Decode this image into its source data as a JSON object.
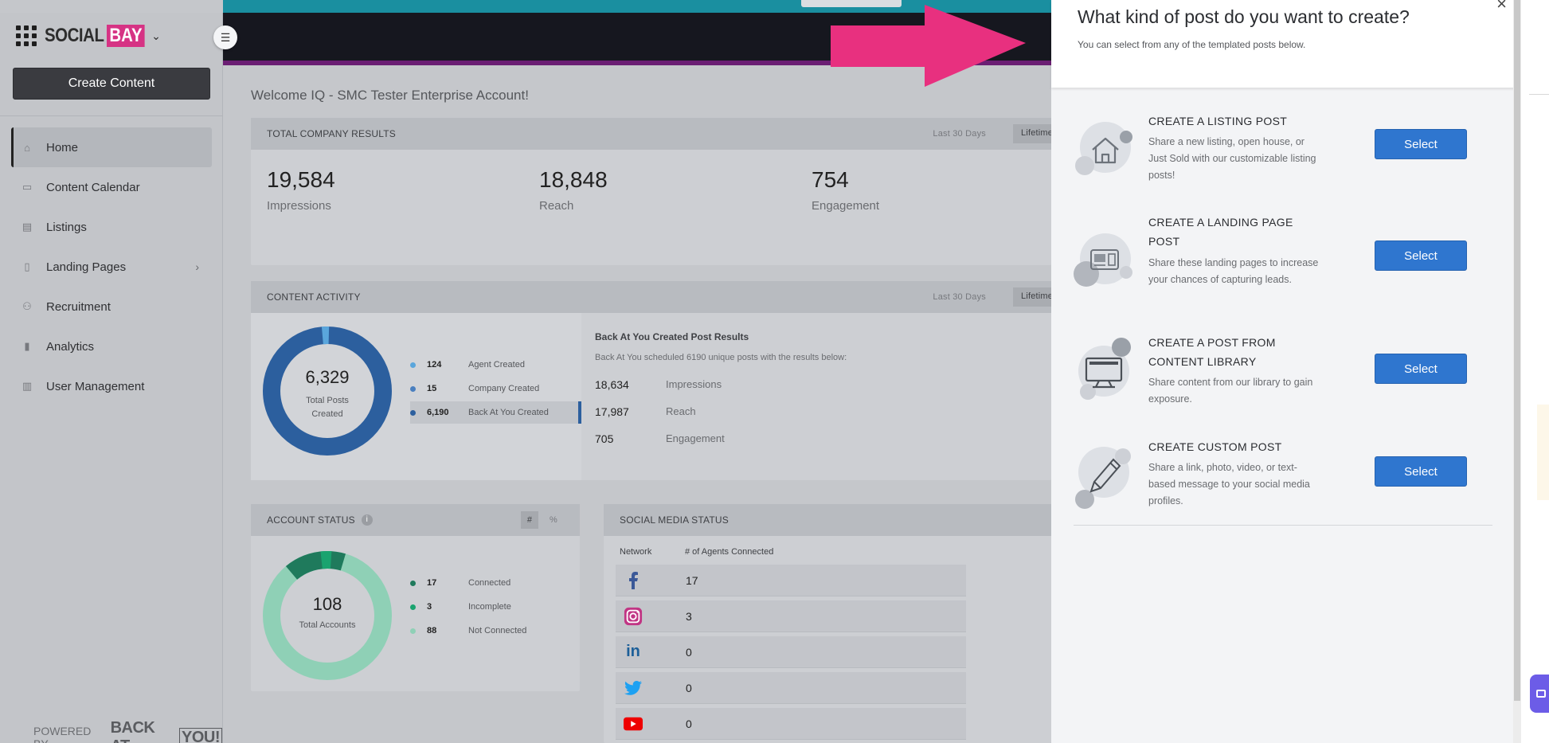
{
  "brand": {
    "social": "SOCIAL",
    "bay": "BAY",
    "chevron": "⌄"
  },
  "sidebar": {
    "create_label": "Create Content",
    "items": [
      {
        "label": "Home",
        "icon": "home-icon",
        "glyph": "⌂"
      },
      {
        "label": "Content Calendar",
        "icon": "calendar-icon",
        "glyph": "▭"
      },
      {
        "label": "Listings",
        "icon": "listings-icon",
        "glyph": "▤"
      },
      {
        "label": "Landing Pages",
        "icon": "landing-pages-icon",
        "glyph": "▯"
      },
      {
        "label": "Recruitment",
        "icon": "recruitment-icon",
        "glyph": "⚇"
      },
      {
        "label": "Analytics",
        "icon": "analytics-icon",
        "glyph": "▮"
      },
      {
        "label": "User Management",
        "icon": "user-management-icon",
        "glyph": "▥"
      }
    ],
    "expand_arrow": "›",
    "powered_by": "POWERED BY",
    "powered_brand": "BACK AT",
    "powered_brand_you": "YOU!"
  },
  "main": {
    "welcome": "Welcome IQ - SMC Tester Enterprise Account!",
    "total_results": {
      "title": "TOTAL COMPANY RESULTS",
      "period": "Last 30 Days",
      "lifetime": "Lifetime",
      "metrics": [
        {
          "value": "19,584",
          "label": "Impressions"
        },
        {
          "value": "18,848",
          "label": "Reach"
        },
        {
          "value": "754",
          "label": "Engagement"
        }
      ]
    },
    "content_activity": {
      "title": "CONTENT ACTIVITY",
      "period": "Last 30 Days",
      "lifetime": "Lifetime",
      "donut_total": "6,329",
      "donut_label": "Total Posts Created",
      "legend": [
        {
          "value": "124",
          "label": "Agent Created",
          "color": "#5aa6dc"
        },
        {
          "value": "15",
          "label": "Company Created",
          "color": "#4a7fbf"
        },
        {
          "value": "6,190",
          "label": "Back At You Created",
          "color": "#2c5f9e"
        }
      ],
      "bay_title": "Back At You Created Post Results",
      "bay_sub": "Back At You scheduled 6190 unique posts with the results below:",
      "bay_metrics": [
        {
          "value": "18,634",
          "label": "Impressions"
        },
        {
          "value": "17,987",
          "label": "Reach"
        },
        {
          "value": "705",
          "label": "Engagement"
        }
      ]
    },
    "account_status": {
      "title": "ACCOUNT STATUS",
      "hash": "#",
      "percent": "%",
      "donut_total": "108",
      "donut_label": "Total Accounts",
      "legend": [
        {
          "value": "17",
          "label": "Connected",
          "color": "#1f7a5c"
        },
        {
          "value": "3",
          "label": "Incomplete",
          "color": "#1aa36f"
        },
        {
          "value": "88",
          "label": "Not Connected",
          "color": "#8fd0b6"
        }
      ]
    },
    "social_status": {
      "title": "SOCIAL MEDIA STATUS",
      "col_network": "Network",
      "col_agents": "# of Agents Connected",
      "rows": [
        {
          "icon": "facebook-icon",
          "count": "17"
        },
        {
          "icon": "instagram-icon",
          "count": "3"
        },
        {
          "icon": "linkedin-icon",
          "count": "0"
        },
        {
          "icon": "twitter-icon",
          "count": "0"
        },
        {
          "icon": "youtube-icon",
          "count": "0"
        }
      ]
    }
  },
  "modal": {
    "title": "What kind of post do you want to create?",
    "subtitle": "You can select from any of the templated posts below.",
    "close": "×",
    "options": [
      {
        "title": "CREATE A LISTING POST",
        "desc": "Share a new listing, open house, or Just Sold with our customizable listing posts!",
        "button": "Select",
        "icon": "house-icon"
      },
      {
        "title": "CREATE A LANDING PAGE POST",
        "desc": "Share these landing pages to increase your chances of capturing leads.",
        "button": "Select",
        "icon": "landing-page-icon"
      },
      {
        "title": "CREATE A POST FROM CONTENT LIBRARY",
        "desc": "Share content from our library to gain exposure.",
        "button": "Select",
        "icon": "monitor-icon"
      },
      {
        "title": "CREATE CUSTOM POST",
        "desc": "Share a link, photo, video, or text-based message to your social media profiles.",
        "button": "Select",
        "icon": "pencil-icon"
      }
    ]
  },
  "colors": {
    "accent_pink": "#e8307f",
    "select_blue": "#2f76cf",
    "header_dark": "#16171f",
    "teal": "#1a8fa0"
  }
}
